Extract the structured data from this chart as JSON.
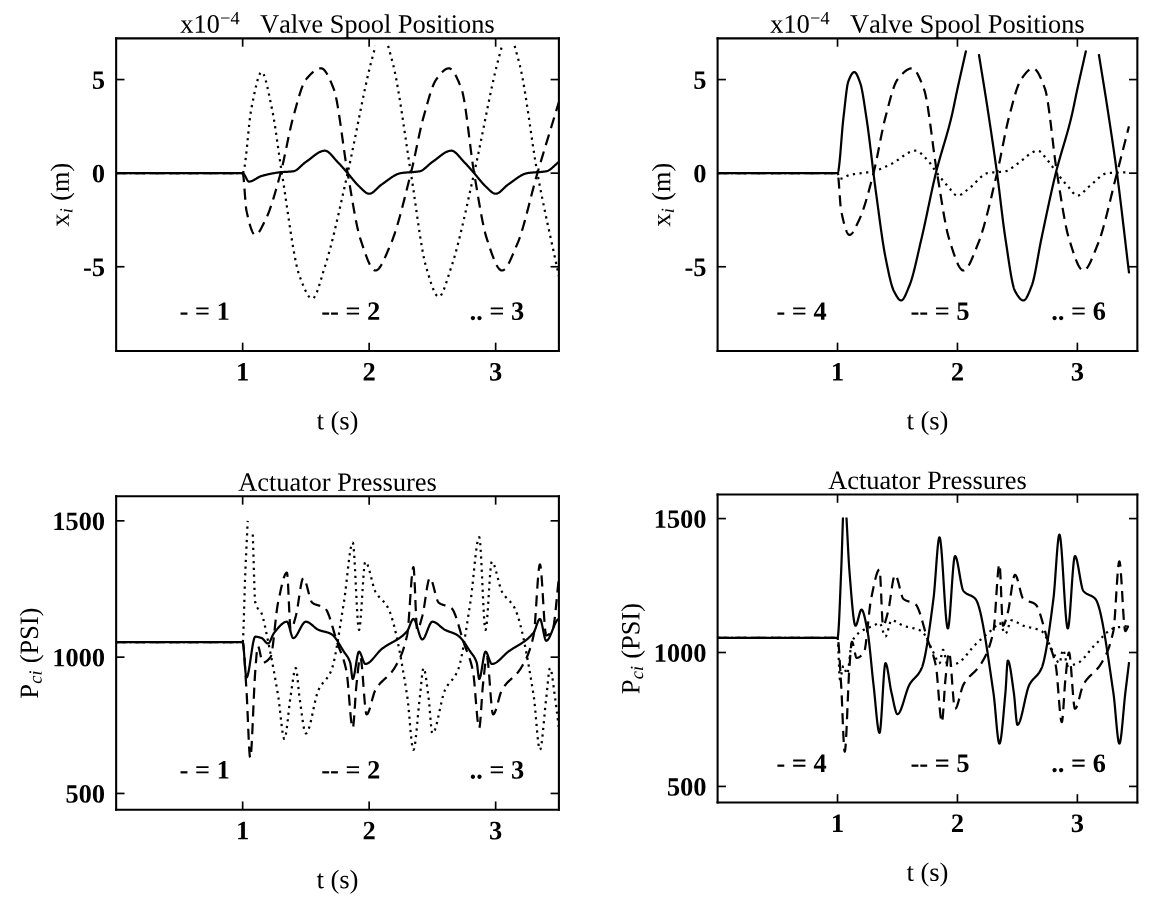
{
  "chart_data": [
    {
      "type": "line",
      "title": "x10$^{−4}$   Valve Spool Positions",
      "xlabel": "t (s)",
      "ylabel": "x$_{i}$ (m)",
      "xlim": [
        0,
        3.5
      ],
      "xticks": [
        1,
        2,
        3
      ],
      "ylim": [
        -9.5,
        7.2
      ],
      "yticks": [
        -5,
        0,
        5
      ],
      "grid": false,
      "legend": false,
      "annotations": [
        "- = 1",
        "-- = 2",
        ".. = 3"
      ],
      "series": [
        {
          "color": "#000000",
          "line_style": "solid",
          "x": [
            0,
            1.0,
            1.05,
            1.15,
            1.3,
            1.4,
            1.5,
            1.65,
            1.75,
            1.83,
            1.92,
            2.0,
            2.1,
            2.25,
            2.4,
            2.5,
            2.65,
            2.75,
            2.83,
            2.92,
            3.0,
            3.1,
            3.25,
            3.4,
            3.5
          ],
          "values": [
            0,
            0,
            -0.45,
            -0.15,
            0.05,
            0.1,
            0.6,
            1.2,
            0.6,
            0,
            -0.7,
            -1.1,
            -0.6,
            0,
            0.1,
            0.6,
            1.2,
            0.6,
            0,
            -0.7,
            -1.1,
            -0.6,
            0,
            0.1,
            0.6
          ]
        },
        {
          "color": "#000000",
          "line_style": "dashed",
          "x": [
            0,
            1.0,
            1.03,
            1.1,
            1.18,
            1.3,
            1.4,
            1.5,
            1.62,
            1.72,
            1.83,
            1.93,
            2.05,
            2.17,
            2.33,
            2.43,
            2.53,
            2.63,
            2.73,
            2.83,
            2.93,
            3.05,
            3.17,
            3.33,
            3.5
          ],
          "values": [
            0,
            0,
            -2,
            -3.3,
            -2.5,
            0,
            3,
            5,
            5.6,
            4.5,
            0,
            -3.5,
            -5.2,
            -3.8,
            0,
            3,
            5,
            5.6,
            4.5,
            0,
            -3.5,
            -5.2,
            -3.8,
            0,
            3.8
          ]
        },
        {
          "color": "#000000",
          "line_style": "dotted",
          "x": [
            0,
            1.0,
            1.07,
            1.15,
            1.23,
            1.31,
            1.45,
            1.55,
            1.65,
            1.83,
            2.0,
            2.05,
            2.1,
            2.15,
            2.2,
            2.33,
            2.45,
            2.55,
            2.65,
            2.83,
            3.0,
            3.05,
            3.1,
            3.15,
            3.2,
            3.33,
            3.5
          ],
          "values": [
            0,
            0,
            3.5,
            5.4,
            3.5,
            0,
            -5.5,
            -6.7,
            -5,
            0,
            5.5,
            6.8,
            null,
            6.8,
            5.5,
            0,
            -5,
            -6.6,
            -5,
            0,
            5.5,
            6.8,
            null,
            6.8,
            5.5,
            0,
            -5.5
          ]
        }
      ]
    },
    {
      "type": "line",
      "title": "x10$^{−4}$   Valve Spool Positions",
      "xlabel": "t (s)",
      "ylabel": "x$_{i}$ (m)",
      "xlim": [
        0,
        3.5
      ],
      "xticks": [
        1,
        2,
        3
      ],
      "ylim": [
        -9.5,
        7.2
      ],
      "yticks": [
        -5,
        0,
        5
      ],
      "grid": false,
      "legend": false,
      "annotations": [
        "- = 4",
        "-- = 5",
        ".. = 6"
      ],
      "series": [
        {
          "color": "#000000",
          "line_style": "solid",
          "x": [
            0,
            1.0,
            1.05,
            1.09,
            1.14,
            1.19,
            1.24,
            1.32,
            1.4,
            1.47,
            1.53,
            1.6,
            1.7,
            1.82,
            1.95,
            2.0,
            2.07,
            2.12,
            2.18,
            2.25,
            2.33,
            2.4,
            2.48,
            2.55,
            2.62,
            2.7,
            2.82,
            2.95,
            3.0,
            3.07,
            3.12,
            3.18,
            3.25,
            3.33,
            3.43
          ],
          "values": [
            0,
            0,
            3,
            4.9,
            5.4,
            4.8,
            3,
            -1,
            -4.5,
            -6.3,
            -6.8,
            -6,
            -3.5,
            0,
            3,
            4.5,
            6.5,
            null,
            6.3,
            3.5,
            0,
            -3.5,
            -6.3,
            -6.8,
            -6,
            -3.5,
            0,
            3,
            4.5,
            6.5,
            null,
            6.3,
            3.5,
            0,
            -5.3
          ]
        },
        {
          "color": "#000000",
          "line_style": "dashed",
          "x": [
            0,
            1.0,
            1.03,
            1.1,
            1.18,
            1.3,
            1.4,
            1.5,
            1.62,
            1.72,
            1.83,
            1.93,
            2.05,
            2.17,
            2.33,
            2.43,
            2.53,
            2.63,
            2.73,
            2.83,
            2.93,
            3.05,
            3.17,
            3.33,
            3.43
          ],
          "values": [
            0,
            0,
            -2,
            -3.3,
            -2.5,
            0,
            3,
            5,
            5.6,
            4.5,
            0,
            -3.5,
            -5.2,
            -3.8,
            0,
            3,
            5,
            5.6,
            4.5,
            0,
            -3.5,
            -5.2,
            -3.8,
            0,
            2.5
          ]
        },
        {
          "color": "#000000",
          "line_style": "dotted",
          "x": [
            0,
            1.0,
            1.02,
            1.1,
            1.3,
            1.45,
            1.65,
            1.75,
            1.83,
            1.92,
            2.0,
            2.1,
            2.25,
            2.4,
            2.5,
            2.67,
            2.75,
            2.83,
            2.92,
            3.0,
            3.1,
            3.25,
            3.43
          ],
          "values": [
            0,
            0,
            -0.3,
            -0.1,
            0.1,
            0.5,
            1.2,
            0.7,
            0,
            -0.7,
            -1.2,
            -0.8,
            0,
            0.1,
            0.5,
            1.2,
            0.7,
            0,
            -0.7,
            -1.2,
            -0.7,
            0,
            0.05
          ]
        }
      ]
    },
    {
      "type": "line",
      "title": "Actuator Pressures",
      "xlabel": "t (s)",
      "ylabel": "P$_{ci}$ (PSI)",
      "xlim": [
        0,
        3.5
      ],
      "xticks": [
        1,
        2,
        3
      ],
      "ylim": [
        440,
        1590
      ],
      "yticks": [
        500,
        1000,
        1500
      ],
      "grid": false,
      "legend": false,
      "annotations": [
        "- = 1",
        "-- = 2",
        ".. = 3"
      ],
      "series": [
        {
          "color": "#000000",
          "line_style": "solid",
          "x": [
            0,
            1.0,
            1.03,
            1.1,
            1.15,
            1.2,
            1.25,
            1.35,
            1.4,
            1.5,
            1.6,
            1.7,
            1.8,
            1.85,
            1.87,
            1.92,
            1.97,
            2.1,
            2.3,
            2.35,
            2.42,
            2.5,
            2.6,
            2.7,
            2.8,
            2.85,
            2.87,
            2.92,
            2.97,
            3.1,
            3.3,
            3.35,
            3.4,
            3.5
          ],
          "values": [
            1055,
            1055,
            925,
            1075,
            1070,
            1050,
            1090,
            1130,
            1070,
            1130,
            1100,
            1085,
            1020,
            980,
            920,
            1020,
            975,
            1030,
            1095,
            1140,
            1065,
            1130,
            1100,
            1080,
            1020,
            980,
            920,
            1020,
            975,
            1020,
            1090,
            1140,
            1060,
            1140
          ]
        },
        {
          "color": "#000000",
          "line_style": "dashed",
          "x": [
            0,
            1.0,
            1.03,
            1.06,
            1.1,
            1.12,
            1.16,
            1.22,
            1.28,
            1.35,
            1.38,
            1.42,
            1.48,
            1.55,
            1.65,
            1.75,
            1.82,
            1.87,
            1.9,
            1.93,
            1.98,
            2.05,
            2.2,
            2.3,
            2.35,
            2.38,
            2.42,
            2.48,
            2.55,
            2.65,
            2.75,
            2.82,
            2.87,
            2.9,
            2.93,
            2.98,
            3.05,
            3.2,
            3.3,
            3.35,
            3.4,
            3.45,
            3.5
          ],
          "values": [
            1055,
            1055,
            880,
            630,
            950,
            1040,
            980,
            1000,
            1200,
            1310,
            1100,
            1150,
            1290,
            1200,
            1180,
            1050,
            950,
            740,
            900,
            1000,
            790,
            880,
            960,
            1080,
            1330,
            1100,
            1150,
            1290,
            1200,
            1180,
            1050,
            950,
            740,
            900,
            1000,
            790,
            880,
            960,
            1080,
            1340,
            1080,
            1100,
            1290
          ]
        },
        {
          "color": "#000000",
          "line_style": "dotted",
          "x": [
            0,
            1.0,
            1.02,
            1.04,
            1.06,
            1.08,
            1.1,
            1.15,
            1.2,
            1.28,
            1.33,
            1.38,
            1.42,
            1.45,
            1.5,
            1.6,
            1.7,
            1.8,
            1.87,
            1.92,
            1.97,
            2.05,
            2.15,
            2.3,
            2.35,
            2.4,
            2.43,
            2.47,
            2.5,
            2.6,
            2.7,
            2.8,
            2.87,
            2.92,
            2.97,
            3.05,
            3.15,
            3.3,
            3.35,
            3.4,
            3.43,
            3.47,
            3.5
          ],
          "values": [
            1055,
            1055,
            1300,
            1500,
            null,
            1450,
            1200,
            1160,
            1060,
            860,
            700,
            860,
            960,
            850,
            720,
            880,
            950,
            1200,
            1420,
            1100,
            1350,
            1240,
            1180,
            860,
            660,
            850,
            960,
            850,
            720,
            880,
            950,
            1200,
            1440,
            1100,
            1350,
            1240,
            1180,
            860,
            660,
            850,
            960,
            850,
            740
          ]
        }
      ]
    },
    {
      "type": "line",
      "title": "Actuator Pressures",
      "xlabel": "t (s)",
      "ylabel": "P$_{ci}$ (PSI)",
      "xlim": [
        0,
        3.5
      ],
      "xticks": [
        1,
        2,
        3
      ],
      "ylim": [
        440,
        1590
      ],
      "yticks": [
        500,
        1000,
        1500
      ],
      "grid": false,
      "legend": false,
      "annotations": [
        "- = 4",
        "-- = 5",
        ".. = 6"
      ],
      "series": [
        {
          "color": "#000000",
          "line_style": "solid",
          "x": [
            0,
            1.0,
            1.03,
            1.045,
            1.06,
            1.075,
            1.1,
            1.15,
            1.2,
            1.25,
            1.3,
            1.35,
            1.4,
            1.45,
            1.5,
            1.6,
            1.7,
            1.8,
            1.85,
            1.92,
            1.98,
            2.05,
            2.15,
            2.3,
            2.35,
            2.4,
            2.42,
            2.47,
            2.5,
            2.6,
            2.7,
            2.8,
            2.85,
            2.92,
            2.98,
            3.05,
            3.15,
            3.3,
            3.35,
            3.4,
            3.43
          ],
          "values": [
            1055,
            1055,
            1300,
            1500,
            null,
            1500,
            1300,
            1100,
            1160,
            1080,
            880,
            700,
            960,
            850,
            770,
            880,
            940,
            1200,
            1430,
            1090,
            1360,
            1230,
            1200,
            850,
            660,
            850,
            970,
            850,
            730,
            880,
            940,
            1200,
            1440,
            1090,
            1360,
            1230,
            1200,
            850,
            660,
            850,
            960
          ]
        },
        {
          "color": "#000000",
          "line_style": "dashed",
          "x": [
            0,
            1.0,
            1.03,
            1.06,
            1.1,
            1.12,
            1.16,
            1.22,
            1.28,
            1.35,
            1.38,
            1.42,
            1.48,
            1.55,
            1.65,
            1.75,
            1.82,
            1.87,
            1.9,
            1.93,
            1.98,
            2.05,
            2.2,
            2.3,
            2.35,
            2.38,
            2.42,
            2.48,
            2.55,
            2.65,
            2.75,
            2.82,
            2.87,
            2.9,
            2.93,
            2.98,
            3.05,
            3.2,
            3.3,
            3.35,
            3.4,
            3.43
          ],
          "values": [
            1055,
            1055,
            880,
            630,
            950,
            1040,
            980,
            1000,
            1200,
            1310,
            1100,
            1150,
            1290,
            1200,
            1180,
            1050,
            950,
            740,
            900,
            1000,
            790,
            880,
            960,
            1080,
            1330,
            1100,
            1150,
            1290,
            1200,
            1180,
            1050,
            950,
            740,
            900,
            1000,
            790,
            880,
            960,
            1080,
            1340,
            1080,
            1100
          ]
        },
        {
          "color": "#000000",
          "line_style": "dotted",
          "x": [
            0,
            1.0,
            1.02,
            1.05,
            1.08,
            1.12,
            1.2,
            1.3,
            1.35,
            1.4,
            1.45,
            1.55,
            1.7,
            1.8,
            1.85,
            1.88,
            1.92,
            2.0,
            2.15,
            2.3,
            2.35,
            2.4,
            2.45,
            2.55,
            2.7,
            2.8,
            2.85,
            2.88,
            2.92,
            3.0,
            3.15,
            3.3,
            3.43
          ],
          "values": [
            1055,
            1055,
            900,
            950,
            920,
            1040,
            1080,
            1100,
            1110,
            1060,
            1120,
            1100,
            1080,
            1000,
            960,
            1010,
            950,
            960,
            1030,
            1090,
            1110,
            1070,
            1120,
            1100,
            1080,
            1000,
            960,
            1010,
            950,
            960,
            1030,
            1090,
            1100
          ]
        }
      ]
    }
  ]
}
